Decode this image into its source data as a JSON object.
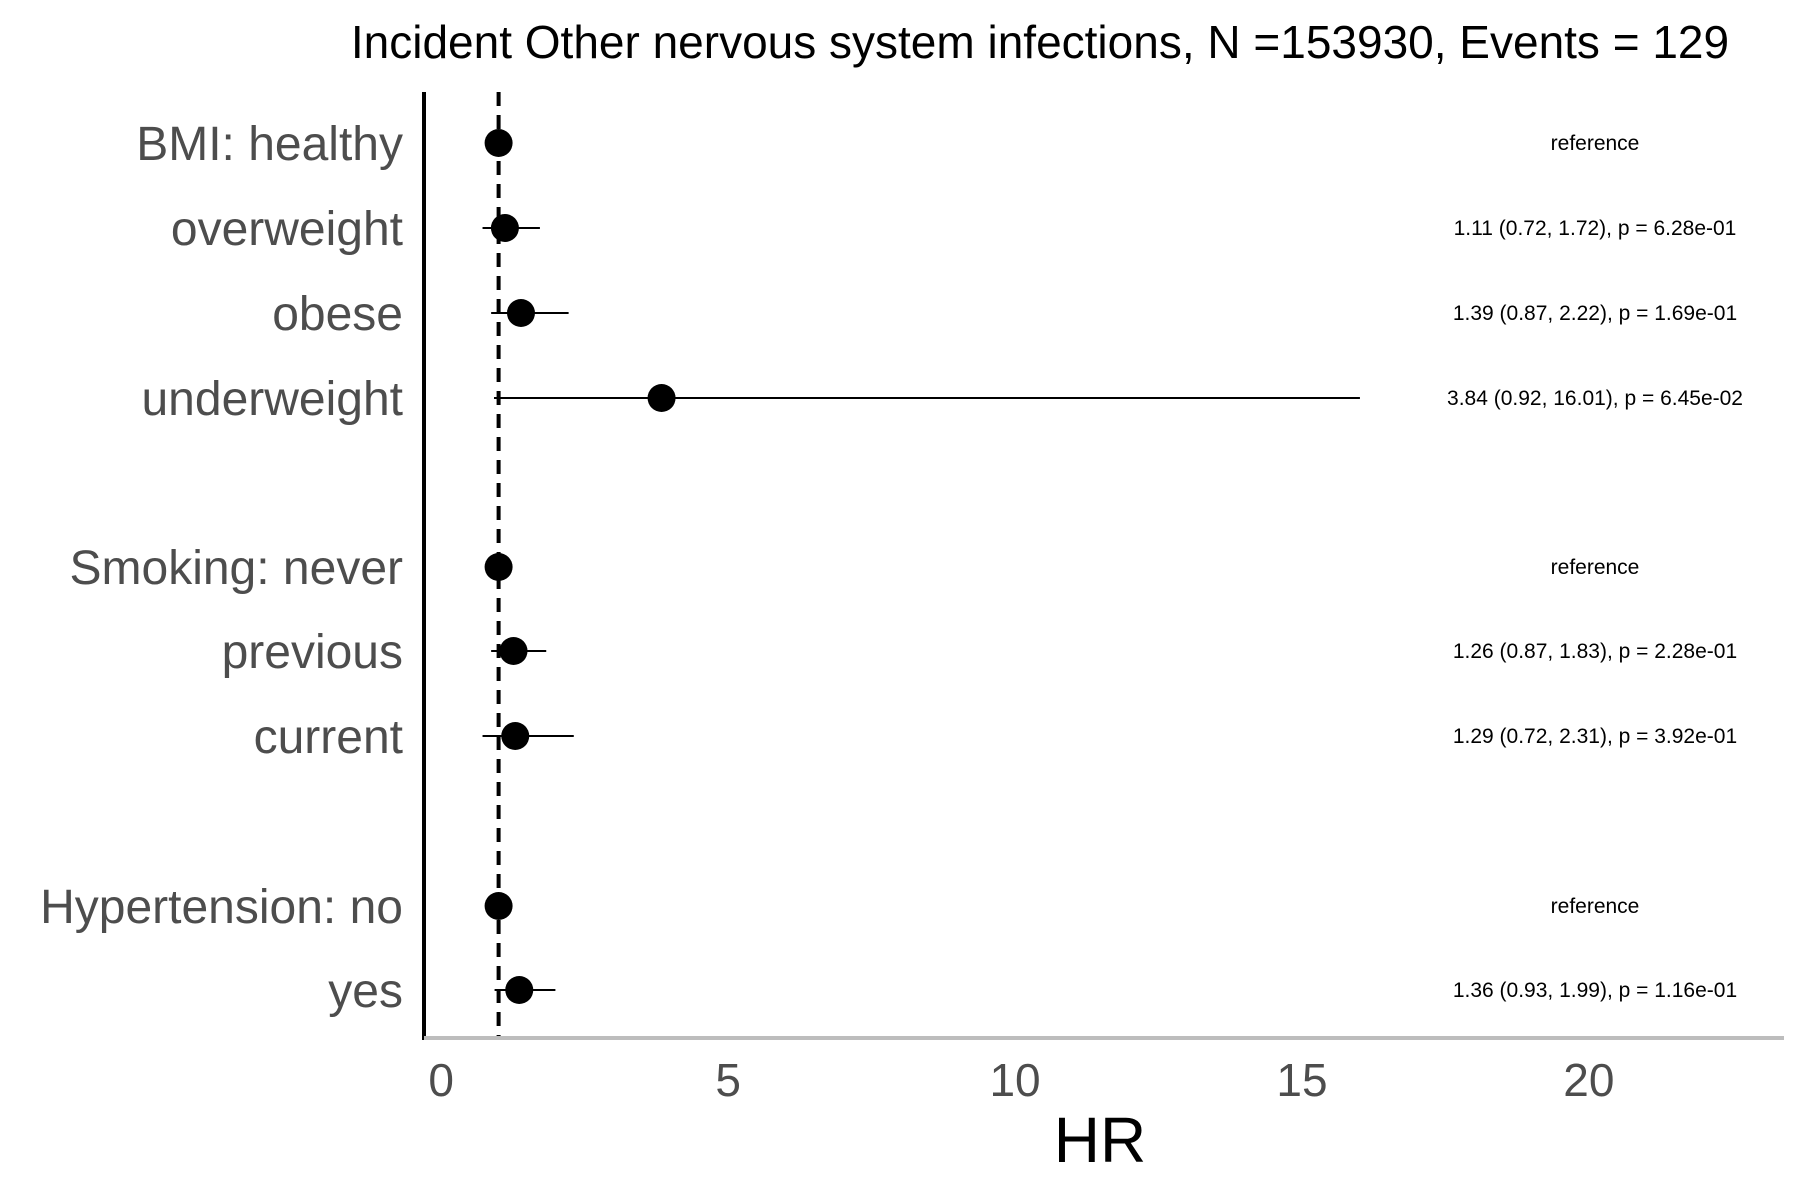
{
  "chart_data": {
    "type": "forest",
    "title": "Incident Other nervous system infections, N =153930, Events = 129",
    "xlabel": "HR",
    "xlim": [
      -0.3,
      23.4
    ],
    "xticks": [
      0,
      5,
      10,
      15,
      20
    ],
    "reference_line": 1,
    "colors": {
      "point": "#000000",
      "label": "#4d4d4d",
      "axis": "#000000",
      "x_axis_line": "#bdbdbd"
    },
    "rows": [
      {
        "label": "BMI: healthy",
        "hr": 1.0,
        "lower": null,
        "upper": null,
        "annotation": "reference"
      },
      {
        "label": "overweight",
        "hr": 1.11,
        "lower": 0.72,
        "upper": 1.72,
        "annotation": "1.11 (0.72, 1.72), p = 6.28e-01"
      },
      {
        "label": "obese",
        "hr": 1.39,
        "lower": 0.87,
        "upper": 2.22,
        "annotation": "1.39 (0.87, 2.22), p = 1.69e-01"
      },
      {
        "label": "underweight",
        "hr": 3.84,
        "lower": 0.92,
        "upper": 16.01,
        "annotation": "3.84 (0.92, 16.01), p = 6.45e-02"
      },
      {
        "label": "Smoking: never",
        "hr": 1.0,
        "lower": null,
        "upper": null,
        "annotation": "reference"
      },
      {
        "label": "previous",
        "hr": 1.26,
        "lower": 0.87,
        "upper": 1.83,
        "annotation": "1.26 (0.87, 1.83), p = 2.28e-01"
      },
      {
        "label": "current",
        "hr": 1.29,
        "lower": 0.72,
        "upper": 2.31,
        "annotation": "1.29 (0.72, 2.31), p = 3.92e-01"
      },
      {
        "label": "Hypertension: no",
        "hr": 1.0,
        "lower": null,
        "upper": null,
        "annotation": "reference"
      },
      {
        "label": "yes",
        "hr": 1.36,
        "lower": 0.93,
        "upper": 1.99,
        "annotation": "1.36 (0.93, 1.99), p = 1.16e-01"
      }
    ]
  }
}
